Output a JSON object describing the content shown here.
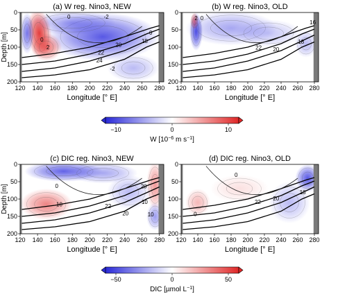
{
  "colorbar_w": {
    "label_main": "W [10",
    "label_exp1": "−6",
    "label_mid": " m s",
    "label_exp2": "−1",
    "label_end": "]",
    "ticks": [
      "−10",
      "0",
      "10"
    ],
    "colors": [
      "#2a2ad8",
      "#ffffff",
      "#e02828"
    ]
  },
  "colorbar_dic": {
    "label": "DIC [µmol L",
    "label_exp": "−1",
    "label_end": "]",
    "ticks": [
      "−50",
      "0",
      "50"
    ],
    "colors": [
      "#2a2ad8",
      "#ffffff",
      "#e02828"
    ]
  },
  "chart_data": [
    {
      "type": "heatmap",
      "title": "(a) W reg. Nino3, NEW",
      "xlabel": "Longitude [° E]",
      "ylabel": "Depth [m]",
      "x_ticks": [
        "120",
        "140",
        "160",
        "180",
        "200",
        "220",
        "240",
        "260",
        "280"
      ],
      "y_ticks": [
        "0",
        "50",
        "100",
        "150",
        "200"
      ],
      "xlim": [
        120,
        285
      ],
      "ylim": [
        200,
        0
      ],
      "anomaly_labels": [
        {
          "text": "0",
          "lon": 176,
          "depth": 14
        },
        {
          "text": "-2",
          "lon": 219,
          "depth": 14
        },
        {
          "text": "0",
          "lon": 145,
          "depth": 80
        },
        {
          "text": "2",
          "lon": 152,
          "depth": 102
        },
        {
          "text": "-2",
          "lon": 226,
          "depth": 164
        },
        {
          "text": "0",
          "lon": 270,
          "depth": 60
        }
      ],
      "isotherm_labels": [
        {
          "text": "24",
          "lon": 211,
          "depth": 140
        },
        {
          "text": "22",
          "lon": 213,
          "depth": 117
        },
        {
          "text": "20",
          "lon": 233,
          "depth": 95
        },
        {
          "text": "18",
          "lon": 263,
          "depth": 84
        }
      ]
    },
    {
      "type": "heatmap",
      "title": "(b) W reg. Nino3, OLD",
      "xlabel": "Longitude [° E]",
      "ylabel": "",
      "x_ticks": [
        "120",
        "140",
        "160",
        "180",
        "200",
        "220",
        "240",
        "260",
        "280"
      ],
      "y_ticks": [
        "0",
        "50",
        "100",
        "150",
        "200"
      ],
      "xlim": [
        120,
        285
      ],
      "ylim": [
        200,
        0
      ],
      "anomaly_labels": [
        {
          "text": "2",
          "lon": 138,
          "depth": 18
        },
        {
          "text": "0",
          "lon": 145,
          "depth": 18
        }
      ],
      "isotherm_labels": [
        {
          "text": "22",
          "lon": 213,
          "depth": 103
        },
        {
          "text": "20",
          "lon": 234,
          "depth": 108
        },
        {
          "text": "18",
          "lon": 264,
          "depth": 86
        },
        {
          "text": "16",
          "lon": 278,
          "depth": 30
        }
      ]
    },
    {
      "type": "heatmap",
      "title": "(c) DIC reg. Nino3, NEW",
      "xlabel": "Longitude [° E]",
      "ylabel": "Depth [m]",
      "x_ticks": [
        "120",
        "140",
        "160",
        "180",
        "200",
        "220",
        "240",
        "260",
        "280"
      ],
      "y_ticks": [
        "0",
        "50",
        "100",
        "150",
        "200"
      ],
      "xlim": [
        120,
        285
      ],
      "ylim": [
        200,
        0
      ],
      "anomaly_labels": [
        {
          "text": "0",
          "lon": 162,
          "depth": 64
        },
        {
          "text": "10",
          "lon": 165,
          "depth": 117
        },
        {
          "text": "22",
          "lon": 221,
          "depth": 122
        },
        {
          "text": "20",
          "lon": 241,
          "depth": 143
        }
      ],
      "isotherm_labels": [
        {
          "text": "20",
          "lon": 262,
          "depth": 65
        },
        {
          "text": "10",
          "lon": 263,
          "depth": 110
        },
        {
          "text": "10",
          "lon": 270,
          "depth": 146
        }
      ]
    },
    {
      "type": "heatmap",
      "title": "(d) DIC reg. Nino3, OLD",
      "xlabel": "Longitude [° E]",
      "ylabel": "",
      "x_ticks": [
        "120",
        "140",
        "160",
        "180",
        "200",
        "220",
        "240",
        "260",
        "280"
      ],
      "y_ticks": [
        "0",
        "50",
        "100",
        "150",
        "200"
      ],
      "xlim": [
        120,
        285
      ],
      "ylim": [
        200,
        0
      ],
      "anomaly_labels": [
        {
          "text": "0",
          "lon": 186,
          "depth": 32
        },
        {
          "text": "0",
          "lon": 137,
          "depth": 145
        }
      ],
      "isotherm_labels": [
        {
          "text": "22",
          "lon": 212,
          "depth": 110
        },
        {
          "text": "20",
          "lon": 234,
          "depth": 100
        },
        {
          "text": "18",
          "lon": 266,
          "depth": 82
        }
      ]
    }
  ]
}
